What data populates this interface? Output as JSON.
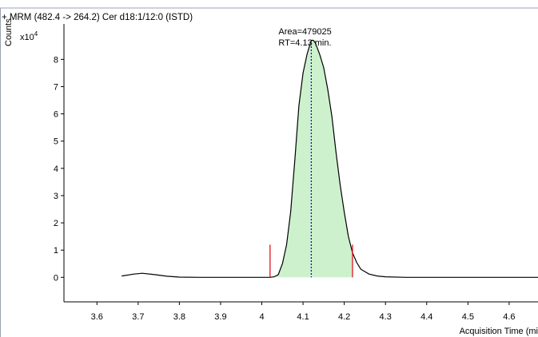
{
  "chart_data": {
    "type": "line",
    "title": "+ MRM (482.4 -> 264.2) Cer d18:1/12:0 (ISTD)",
    "ylabel": "Counts",
    "y_multiplier_label": "x10",
    "y_multiplier_exponent": "4",
    "xlabel": "Acquisition Time (mi",
    "xlim": [
      3.52,
      4.67
    ],
    "ylim": [
      -0.9,
      9.3
    ],
    "x_ticks": [
      "3.6",
      "3.7",
      "3.8",
      "3.9",
      "4",
      "4.1",
      "4.2",
      "4.3",
      "4.4",
      "4.5",
      "4.6"
    ],
    "y_ticks": [
      "0",
      "1",
      "2",
      "3",
      "4",
      "5",
      "6",
      "7",
      "8"
    ],
    "grid": false,
    "series": [
      {
        "color": "#000000",
        "fill_color": "#cdf1cd",
        "x": [
          3.66,
          3.69,
          3.71,
          3.74,
          3.77,
          3.8,
          3.85,
          3.9,
          3.95,
          4.0,
          4.02,
          4.03,
          4.04,
          4.05,
          4.06,
          4.07,
          4.08,
          4.09,
          4.1,
          4.11,
          4.12,
          4.125,
          4.13,
          4.14,
          4.15,
          4.16,
          4.17,
          4.18,
          4.19,
          4.2,
          4.21,
          4.22,
          4.23,
          4.24,
          4.26,
          4.28,
          4.3,
          4.35,
          4.4,
          4.5,
          4.6,
          4.67
        ],
        "y": [
          0.05,
          0.12,
          0.15,
          0.1,
          0.04,
          0.01,
          0.0,
          0.0,
          0.0,
          0.0,
          0.0,
          0.02,
          0.1,
          0.5,
          1.2,
          2.4,
          4.3,
          6.3,
          7.5,
          8.2,
          8.7,
          8.7,
          8.6,
          8.2,
          7.7,
          6.9,
          5.9,
          4.6,
          3.4,
          2.4,
          1.5,
          0.9,
          0.55,
          0.3,
          0.12,
          0.05,
          0.02,
          0.0,
          0.0,
          0.0,
          0.0,
          0.0
        ]
      }
    ],
    "integration_markers": {
      "color": "#e0141e",
      "start_x": 4.02,
      "end_x": 4.22,
      "height_y": 1.2,
      "rt_line_x": 4.12,
      "rt_line_color": "#0000c8"
    },
    "annotations": [
      "Area=479025",
      "RT=4.13 min."
    ]
  }
}
